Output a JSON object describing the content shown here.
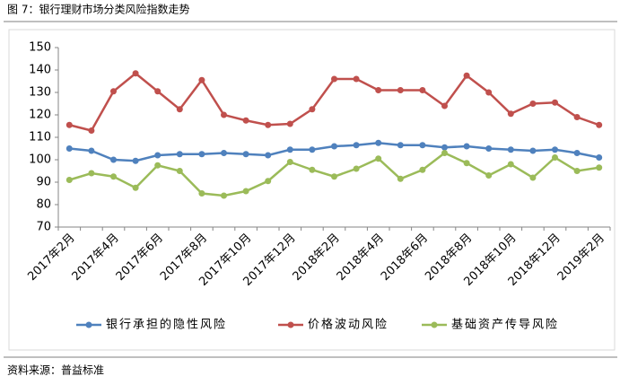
{
  "header": {
    "title": "图 7：银行理财市场分类风险指数走势"
  },
  "footer": {
    "source": "资料来源：普益标准"
  },
  "chart_data": {
    "type": "line",
    "categories": [
      "2017年2月",
      null,
      "2017年4月",
      null,
      "2017年6月",
      null,
      "2017年8月",
      null,
      "2017年10月",
      null,
      "2017年12月",
      null,
      "2018年2月",
      null,
      "2018年4月",
      null,
      "2018年6月",
      null,
      "2018年8月",
      null,
      "2018年10月",
      null,
      "2018年12月",
      null,
      "2019年2月"
    ],
    "series": [
      {
        "name": "银行承担的隐性风险",
        "color": "#4f81bd",
        "values": [
          105,
          104,
          100,
          99.5,
          102,
          102.5,
          102.5,
          103,
          102.5,
          102,
          104.5,
          104.5,
          106,
          106.5,
          107.5,
          106.5,
          106.5,
          105.5,
          106,
          105,
          104.5,
          104,
          104.5,
          103,
          101
        ]
      },
      {
        "name": "价格波动风险",
        "color": "#c0504d",
        "values": [
          115.5,
          113,
          130.5,
          138.5,
          130.5,
          122.5,
          135.5,
          120,
          117.5,
          115.5,
          116,
          122.5,
          136,
          136,
          131,
          131,
          131,
          124,
          137.5,
          130,
          120.5,
          125,
          125.5,
          119,
          115.5
        ]
      },
      {
        "name": "基础资产传导风险",
        "color": "#9bbb59",
        "values": [
          91,
          94,
          92.5,
          87.5,
          97.5,
          95,
          85,
          84,
          86,
          90.5,
          99,
          95.5,
          92.5,
          96,
          100.5,
          91.5,
          95.5,
          103,
          98.5,
          93,
          98,
          92,
          101,
          95,
          96.5
        ]
      }
    ],
    "ylim": [
      70,
      150
    ],
    "yticks": [
      70,
      80,
      90,
      100,
      110,
      120,
      130,
      140,
      150
    ],
    "grid": false,
    "legend": "bottom"
  }
}
